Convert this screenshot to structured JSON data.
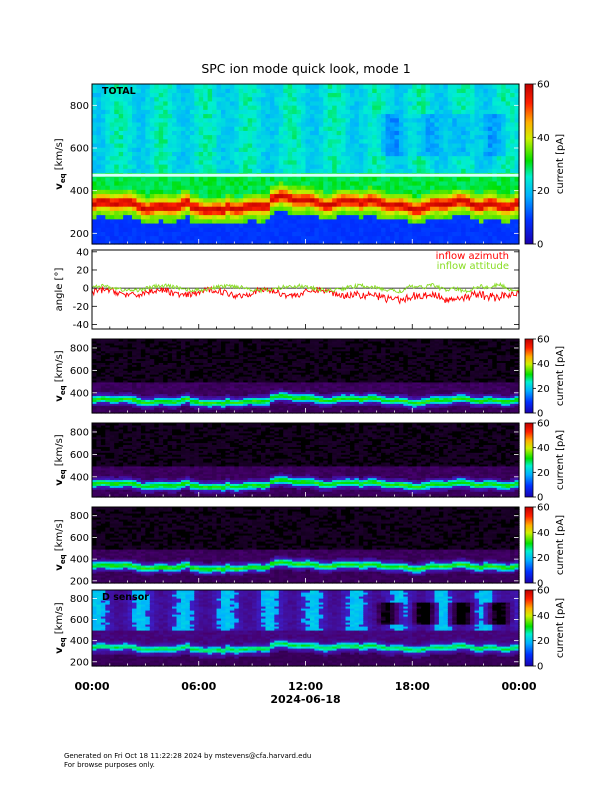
{
  "chart_data": {
    "type": "heatmap",
    "title": "SPC ion mode quick look, mode 1",
    "x_axis": {
      "date_label": "2024-06-18",
      "tick_labels": [
        "00:00",
        "06:00",
        "12:00",
        "18:00",
        "00:00"
      ],
      "range_hours": [
        0,
        24
      ]
    },
    "panels": [
      {
        "type": "heatmap",
        "label": "TOTAL",
        "ylabel": "v_eq [km/s]",
        "ylabel_main": "v",
        "ylabel_sub": "eq",
        "ylabel_unit": "[km/s]",
        "ylim": [
          150,
          900
        ],
        "y_ticks": [
          "200",
          "400",
          "600",
          "800"
        ],
        "colorbar": {
          "label": "current [pA]",
          "range": [
            0,
            60
          ],
          "ticks": [
            "0",
            "20",
            "40",
            "60"
          ],
          "palette": "rainbow"
        }
      },
      {
        "type": "line",
        "ylabel": "angle [°]",
        "ylim": [
          -45,
          42
        ],
        "y_ticks": [
          "-40",
          "-20",
          "0",
          "20",
          "40"
        ],
        "series": [
          {
            "name": "inflow azimuth",
            "color": "#ff0000",
            "mean_deg": -5
          },
          {
            "name": "inflow attitude",
            "color": "#88dd22",
            "mean_deg": 0
          }
        ]
      },
      {
        "type": "heatmap",
        "label": "",
        "ylabel": "v_eq [km/s]",
        "ylabel_main": "v",
        "ylabel_sub": "eq",
        "ylabel_unit": "[km/s]",
        "ylim": [
          220,
          880
        ],
        "y_ticks": [
          "400",
          "600",
          "800"
        ],
        "colorbar": {
          "label": "current [pA]",
          "range": [
            0,
            60
          ],
          "ticks": [
            "0",
            "20",
            "40",
            "60"
          ],
          "palette": "rainbow"
        }
      },
      {
        "type": "heatmap",
        "label": "",
        "ylabel": "v_eq [km/s]",
        "ylabel_main": "v",
        "ylabel_sub": "eq",
        "ylabel_unit": "[km/s]",
        "ylim": [
          220,
          880
        ],
        "y_ticks": [
          "400",
          "600",
          "800"
        ],
        "colorbar": {
          "label": "current [pA]",
          "range": [
            0,
            60
          ],
          "ticks": [
            "0",
            "20",
            "40",
            "60"
          ],
          "palette": "rainbow"
        }
      },
      {
        "type": "heatmap",
        "label": "",
        "ylabel": "v_eq [km/s]",
        "ylabel_main": "v",
        "ylabel_sub": "eq",
        "ylabel_unit": "[km/s]",
        "ylim": [
          180,
          880
        ],
        "y_ticks": [
          "200",
          "400",
          "600",
          "800"
        ],
        "colorbar": {
          "label": "current [pA]",
          "range": [
            0,
            60
          ],
          "ticks": [
            "0",
            "20",
            "40",
            "60"
          ],
          "palette": "rainbow"
        }
      },
      {
        "type": "heatmap",
        "label": "D sensor",
        "ylabel": "v_eq [km/s]",
        "ylabel_main": "v",
        "ylabel_sub": "eq",
        "ylabel_unit": "[km/s]",
        "ylim": [
          160,
          880
        ],
        "y_ticks": [
          "200",
          "400",
          "600",
          "800"
        ],
        "colorbar": {
          "label": "current [pA]",
          "range": [
            0,
            60
          ],
          "ticks": [
            "0",
            "20",
            "40",
            "60"
          ],
          "palette": "rainbow"
        }
      }
    ]
  },
  "footer": {
    "line1": "Generated on Fri Oct 18 11:22:28 2024 by mstevens@cfa.harvard.edu",
    "line2": "For browse purposes only."
  }
}
